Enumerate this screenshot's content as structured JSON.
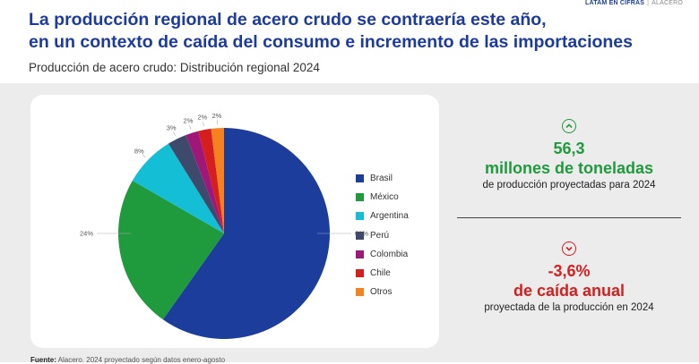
{
  "header": {
    "tag": "LATAM EN CIFRAS",
    "brand": "ALACERO",
    "title_line1": "La producción regional de acero crudo se contraería este año,",
    "title_line2": "en un contexto de caída del consumo e incremento de las importaciones",
    "subtitle": "Producción de acero crudo: Distribución regional 2024"
  },
  "chart_data": {
    "type": "pie",
    "title": "Producción de acero crudo: Distribución regional 2024",
    "legend_position": "right",
    "slices": [
      {
        "name": "Brasil",
        "value": 61,
        "label": "61%",
        "color": "#1c3d9c"
      },
      {
        "name": "México",
        "value": 24,
        "label": "24%",
        "color": "#1f9a3c"
      },
      {
        "name": "Argentina",
        "value": 8,
        "label": "8%",
        "color": "#14bfd6"
      },
      {
        "name": "Perú",
        "value": 3,
        "label": "3%",
        "color": "#3e4a6b"
      },
      {
        "name": "Colombia",
        "value": 2,
        "label": "2%",
        "color": "#a0177a"
      },
      {
        "name": "Chile",
        "value": 2,
        "label": "2%",
        "color": "#d51f1f"
      },
      {
        "name": "Otros",
        "value": 2,
        "label": "2%",
        "color": "#f5821f"
      }
    ]
  },
  "stats": {
    "up": {
      "icon": "chevron-up-circle-icon",
      "value": "56,3",
      "unit": "millones de toneladas",
      "desc": "de producción proyectadas para 2024",
      "color": "#1f9a3c"
    },
    "down": {
      "icon": "chevron-down-circle-icon",
      "value": "-3,6%",
      "unit": "de caída anual",
      "desc": "proyectada de la producción en 2024",
      "color": "#d51f1f"
    }
  },
  "footer": {
    "label": "Fuente:",
    "text": "Alacero. 2024 proyectado según datos enero-agosto"
  }
}
